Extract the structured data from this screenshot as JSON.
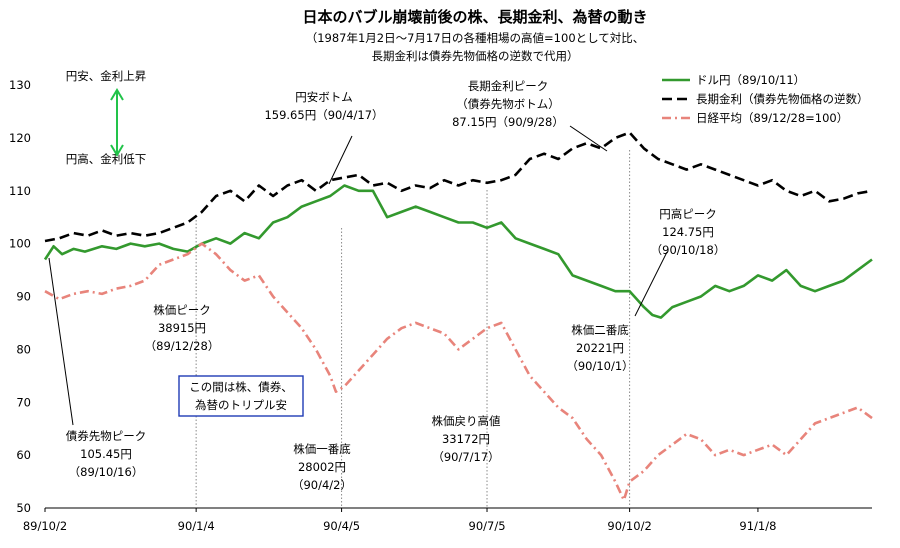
{
  "chart_data": {
    "type": "line",
    "title": "日本のバブル崩壊前後の株、長期金利、為替の動き",
    "subtitle_lines": [
      "（1987年1月2日〜7月17日の各種相場の高値=100として対比、",
      "長期金利は債券先物価格の逆数で代用）"
    ],
    "ylim": [
      50,
      130
    ],
    "yticks": [
      50,
      60,
      70,
      80,
      90,
      100,
      110,
      120,
      130
    ],
    "xlim": [
      0,
      29
    ],
    "xticks": [
      {
        "label": "89/10/2",
        "x": 0
      },
      {
        "label": "90/1/4",
        "x": 5.3
      },
      {
        "label": "90/4/5",
        "x": 10.4
      },
      {
        "label": "90/7/5",
        "x": 15.5
      },
      {
        "label": "90/10/2",
        "x": 20.5
      },
      {
        "label": "91/1/8",
        "x": 25.0
      }
    ],
    "grid": false,
    "legend_position": "top-right",
    "series": [
      {
        "name": "ドル円（89/10/11）",
        "color": "#33992e",
        "style": "solid",
        "x": [
          0,
          0.3,
          0.6,
          1,
          1.4,
          2,
          2.5,
          3,
          3.5,
          4,
          4.5,
          5,
          5.5,
          6,
          6.5,
          7,
          7.5,
          8,
          8.5,
          9,
          9.5,
          10,
          10.5,
          11,
          11.5,
          12,
          12.5,
          13,
          13.5,
          14,
          14.5,
          15,
          15.5,
          16,
          16.5,
          17,
          17.5,
          18,
          18.5,
          19,
          19.5,
          20,
          20.5,
          21,
          21.3,
          21.6,
          22,
          22.5,
          23,
          23.5,
          24,
          24.5,
          25,
          25.5,
          26,
          26.5,
          27,
          27.5,
          28,
          28.5,
          29
        ],
        "values": [
          97,
          99.5,
          98,
          99,
          98.5,
          99.5,
          99,
          100,
          99.5,
          100,
          99,
          98.5,
          100,
          101,
          100,
          102,
          101,
          104,
          105,
          107,
          108,
          109,
          111,
          110,
          110,
          105,
          106,
          107,
          106,
          105,
          104,
          104,
          103,
          104,
          101,
          100,
          99,
          98,
          94,
          93,
          92,
          91,
          91,
          88,
          86.5,
          86,
          88,
          89,
          90,
          92,
          91,
          92,
          94,
          93,
          95,
          92,
          91,
          92,
          93,
          95,
          97
        ]
      },
      {
        "name": "長期金利（債券先物価格の逆数）",
        "color": "#000000",
        "style": "dashed",
        "x": [
          0,
          0.5,
          1,
          1.5,
          2,
          2.5,
          3,
          3.5,
          4,
          4.5,
          5,
          5.5,
          6,
          6.5,
          7,
          7.5,
          8,
          8.5,
          9,
          9.5,
          10,
          10.5,
          11,
          11.5,
          12,
          12.5,
          13,
          13.5,
          14,
          14.5,
          15,
          15.5,
          16,
          16.5,
          17,
          17.5,
          18,
          18.5,
          19,
          19.5,
          20,
          20.5,
          21,
          21.5,
          22,
          22.5,
          23,
          23.5,
          24,
          24.5,
          25,
          25.5,
          26,
          26.5,
          27,
          27.5,
          28,
          28.5,
          29
        ],
        "values": [
          100.5,
          101,
          102,
          101.5,
          102.5,
          101.5,
          102,
          101.5,
          102,
          103,
          104,
          106,
          109,
          110,
          108,
          111,
          109,
          111,
          112,
          110,
          112,
          112.5,
          113,
          111,
          111.5,
          110,
          111,
          110.5,
          112,
          111,
          112,
          111.5,
          112,
          113,
          116,
          117,
          116,
          118,
          119,
          118,
          120,
          121,
          118,
          116,
          115,
          114,
          115,
          114,
          113,
          112,
          111,
          112,
          110,
          109,
          110,
          108,
          108.5,
          109.5,
          110
        ]
      },
      {
        "name": "日経平均（89/12/28=100）",
        "color": "#e8847b",
        "style": "dashdot",
        "x": [
          0,
          0.5,
          1,
          1.5,
          2,
          2.5,
          3,
          3.5,
          4,
          4.5,
          5,
          5.5,
          6,
          6.5,
          7,
          7.5,
          8,
          8.5,
          9,
          9.5,
          10,
          10.2,
          10.5,
          11,
          11.5,
          12,
          12.5,
          13,
          13.5,
          14,
          14.5,
          15,
          15.5,
          16,
          16.5,
          17,
          17.5,
          18,
          18.5,
          19,
          19.5,
          20,
          20.3,
          20.5,
          21,
          21.5,
          22,
          22.5,
          23,
          23.5,
          24,
          24.5,
          25,
          25.5,
          26,
          26.5,
          27,
          27.5,
          28,
          28.5,
          29
        ],
        "values": [
          91,
          89.5,
          90.5,
          91,
          90.5,
          91.5,
          92,
          93,
          96,
          97,
          98,
          100,
          98,
          95,
          93,
          94,
          90,
          87,
          84,
          80,
          75,
          72,
          73,
          76,
          79,
          82,
          84,
          85,
          84,
          83,
          80,
          82,
          84,
          85,
          80,
          75,
          72,
          69,
          67,
          63,
          60,
          55,
          51.5,
          55,
          57,
          60,
          62,
          64,
          63,
          60,
          61,
          60,
          61,
          62,
          60,
          63,
          66,
          67,
          68,
          69,
          67
        ]
      }
    ],
    "annotations": [
      {
        "lines": [
          "円安、金利上昇"
        ]
      },
      {
        "lines": [
          "円高、金利低下"
        ]
      },
      {
        "lines": [
          "円安ボトム",
          "159.65円（90/4/17）"
        ]
      },
      {
        "lines": [
          "長期金利ピーク",
          "（債券先物ボトム）",
          "87.15円（90/9/28）"
        ]
      },
      {
        "lines": [
          "円高ピーク",
          "124.75円",
          "（90/10/18）"
        ]
      },
      {
        "lines": [
          "株価ピーク",
          "38915円",
          "（89/12/28）"
        ]
      },
      {
        "lines": [
          "株価二番底",
          "20221円",
          "（90/10/1）"
        ]
      },
      {
        "lines": [
          "この間は株、債券、",
          "為替のトリプル安"
        ]
      },
      {
        "lines": [
          "債券先物ピーク",
          "105.45円",
          "（89/10/16）"
        ]
      },
      {
        "lines": [
          "株価一番底",
          "28002円",
          "（90/4/2）"
        ]
      },
      {
        "lines": [
          "株価戻り高値",
          "33172円",
          "（90/7/17）"
        ]
      }
    ]
  }
}
